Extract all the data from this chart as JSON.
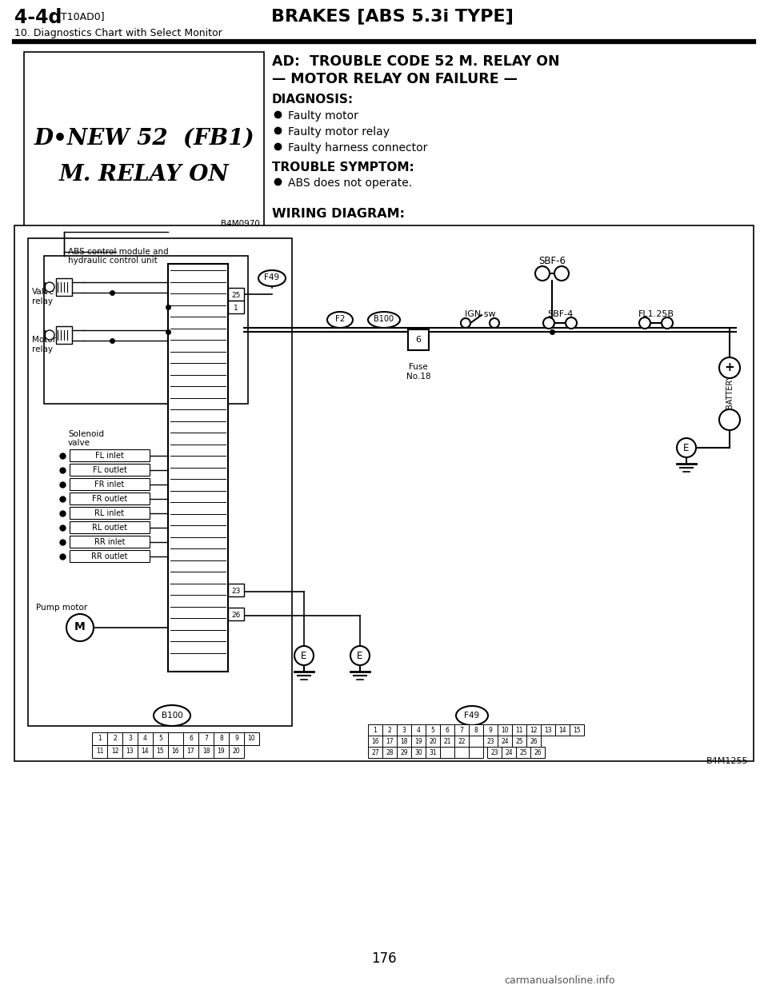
{
  "page_bg": "#ffffff",
  "header_title_left": "4-4d",
  "header_subtitle_left": "[T10AD0]",
  "header_title_center": "BRAKES [ABS 5.3i TYPE]",
  "header_subtitle2": "10. Diagnostics Chart with Select Monitor",
  "page_number": "176",
  "left_box_line1": "D•NEW 52  (FB1)",
  "left_box_line2": "M. RELAY ON",
  "left_box_ref": "B4M0970",
  "ad_title1": "AD:  TROUBLE CODE 52 M. RELAY ON",
  "ad_title2": "— MOTOR RELAY ON FAILURE —",
  "diagnosis_label": "DIAGNOSIS:",
  "diagnosis_items": [
    "Faulty motor",
    "Faulty motor relay",
    "Faulty harness connector"
  ],
  "trouble_label": "TROUBLE SYMPTOM:",
  "trouble_items": [
    "ABS does not operate."
  ],
  "wiring_label": "WIRING DIAGRAM:",
  "solenoid_labels": [
    "FL inlet",
    "FL outlet",
    "FR inlet",
    "FR outlet",
    "RL inlet",
    "RL outlet",
    "RR inlet",
    "RR outlet"
  ],
  "footer_ref": "B4M1255",
  "footer_site": "carmanualsonline.info"
}
